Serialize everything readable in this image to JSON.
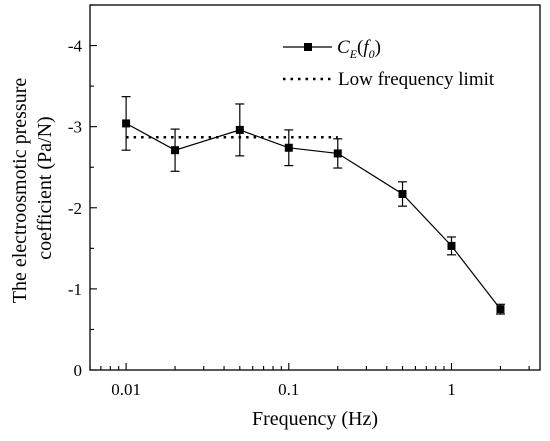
{
  "chart_data": {
    "type": "scatter",
    "title": "",
    "xlabel": "Frequency (Hz)",
    "ylabel_lines": [
      "The electroosmotic pressure",
      "coefficient (Pa/N)"
    ],
    "x_scale": "log",
    "xlim": [
      0.006,
      3.5
    ],
    "ylim": [
      0,
      -4.5
    ],
    "x_ticks": [
      0.01,
      0.1,
      1
    ],
    "x_tick_labels": [
      "0.01",
      "0.1",
      "1"
    ],
    "y_ticks": [
      0,
      -1,
      -2,
      -3,
      -4
    ],
    "y_tick_labels": [
      "0",
      "-1",
      "-2",
      "-3",
      "-4"
    ],
    "grid": false,
    "legend_position": "top-right",
    "legend": {
      "series_label": {
        "c": "C",
        "c_sub": "E",
        "f": "f",
        "f_sub": "0"
      },
      "limit_label": "Low frequency limit"
    },
    "series": [
      {
        "x": [
          0.01,
          0.02,
          0.05,
          0.1,
          0.2,
          0.5,
          1,
          2
        ],
        "y": [
          -3.04,
          -2.71,
          -2.96,
          -2.74,
          -2.67,
          -2.17,
          -1.53,
          -0.75
        ],
        "err": [
          0.33,
          0.26,
          0.32,
          0.22,
          0.18,
          0.15,
          0.11,
          0.06
        ]
      }
    ],
    "low_frequency_limit": {
      "y": -2.87,
      "x_range": [
        0.01,
        0.2
      ]
    },
    "color": "#000000"
  }
}
